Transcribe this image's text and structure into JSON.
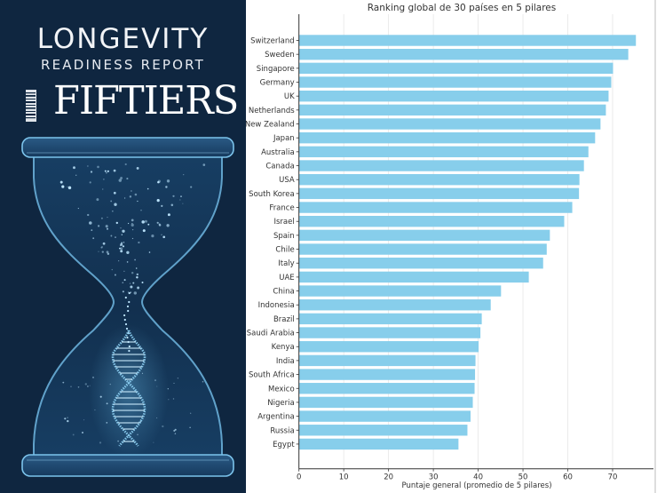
{
  "cover": {
    "title": "LONGEVITY",
    "subtitle": "READINESS REPORT",
    "brand": "FIFTIERS",
    "colors": {
      "background": "#0f2640",
      "glow": "#6fc3ef"
    }
  },
  "chart_data": {
    "type": "bar",
    "orientation": "horizontal",
    "title": "Ranking global de 30 países en 5 pilares",
    "xlabel": "Puntaje general (promedio de 5 pilares)",
    "ylabel": "",
    "xlim": [
      0,
      79
    ],
    "xticks": [
      0,
      10,
      20,
      30,
      40,
      50,
      60,
      70
    ],
    "grid": "vertical",
    "bar_color": "#87ceeb",
    "categories": [
      "Switzerland",
      "Sweden",
      "Singapore",
      "Germany",
      "UK",
      "Netherlands",
      "New Zealand",
      "Japan",
      "Australia",
      "Canada",
      "USA",
      "South Korea",
      "France",
      "Israel",
      "Spain",
      "Chile",
      "Italy",
      "UAE",
      "China",
      "Indonesia",
      "Brazil",
      "Saudi Arabia",
      "Kenya",
      "India",
      "South Africa",
      "Mexico",
      "Nigeria",
      "Argentina",
      "Russia",
      "Egypt"
    ],
    "values": [
      75.2,
      73.5,
      70.1,
      69.7,
      69.1,
      68.5,
      67.3,
      66.1,
      64.6,
      63.6,
      62.6,
      62.5,
      61.0,
      59.2,
      56.0,
      55.3,
      54.5,
      51.3,
      45.1,
      42.8,
      40.8,
      40.5,
      40.1,
      39.4,
      39.3,
      39.2,
      38.8,
      38.3,
      37.6,
      35.6
    ]
  }
}
